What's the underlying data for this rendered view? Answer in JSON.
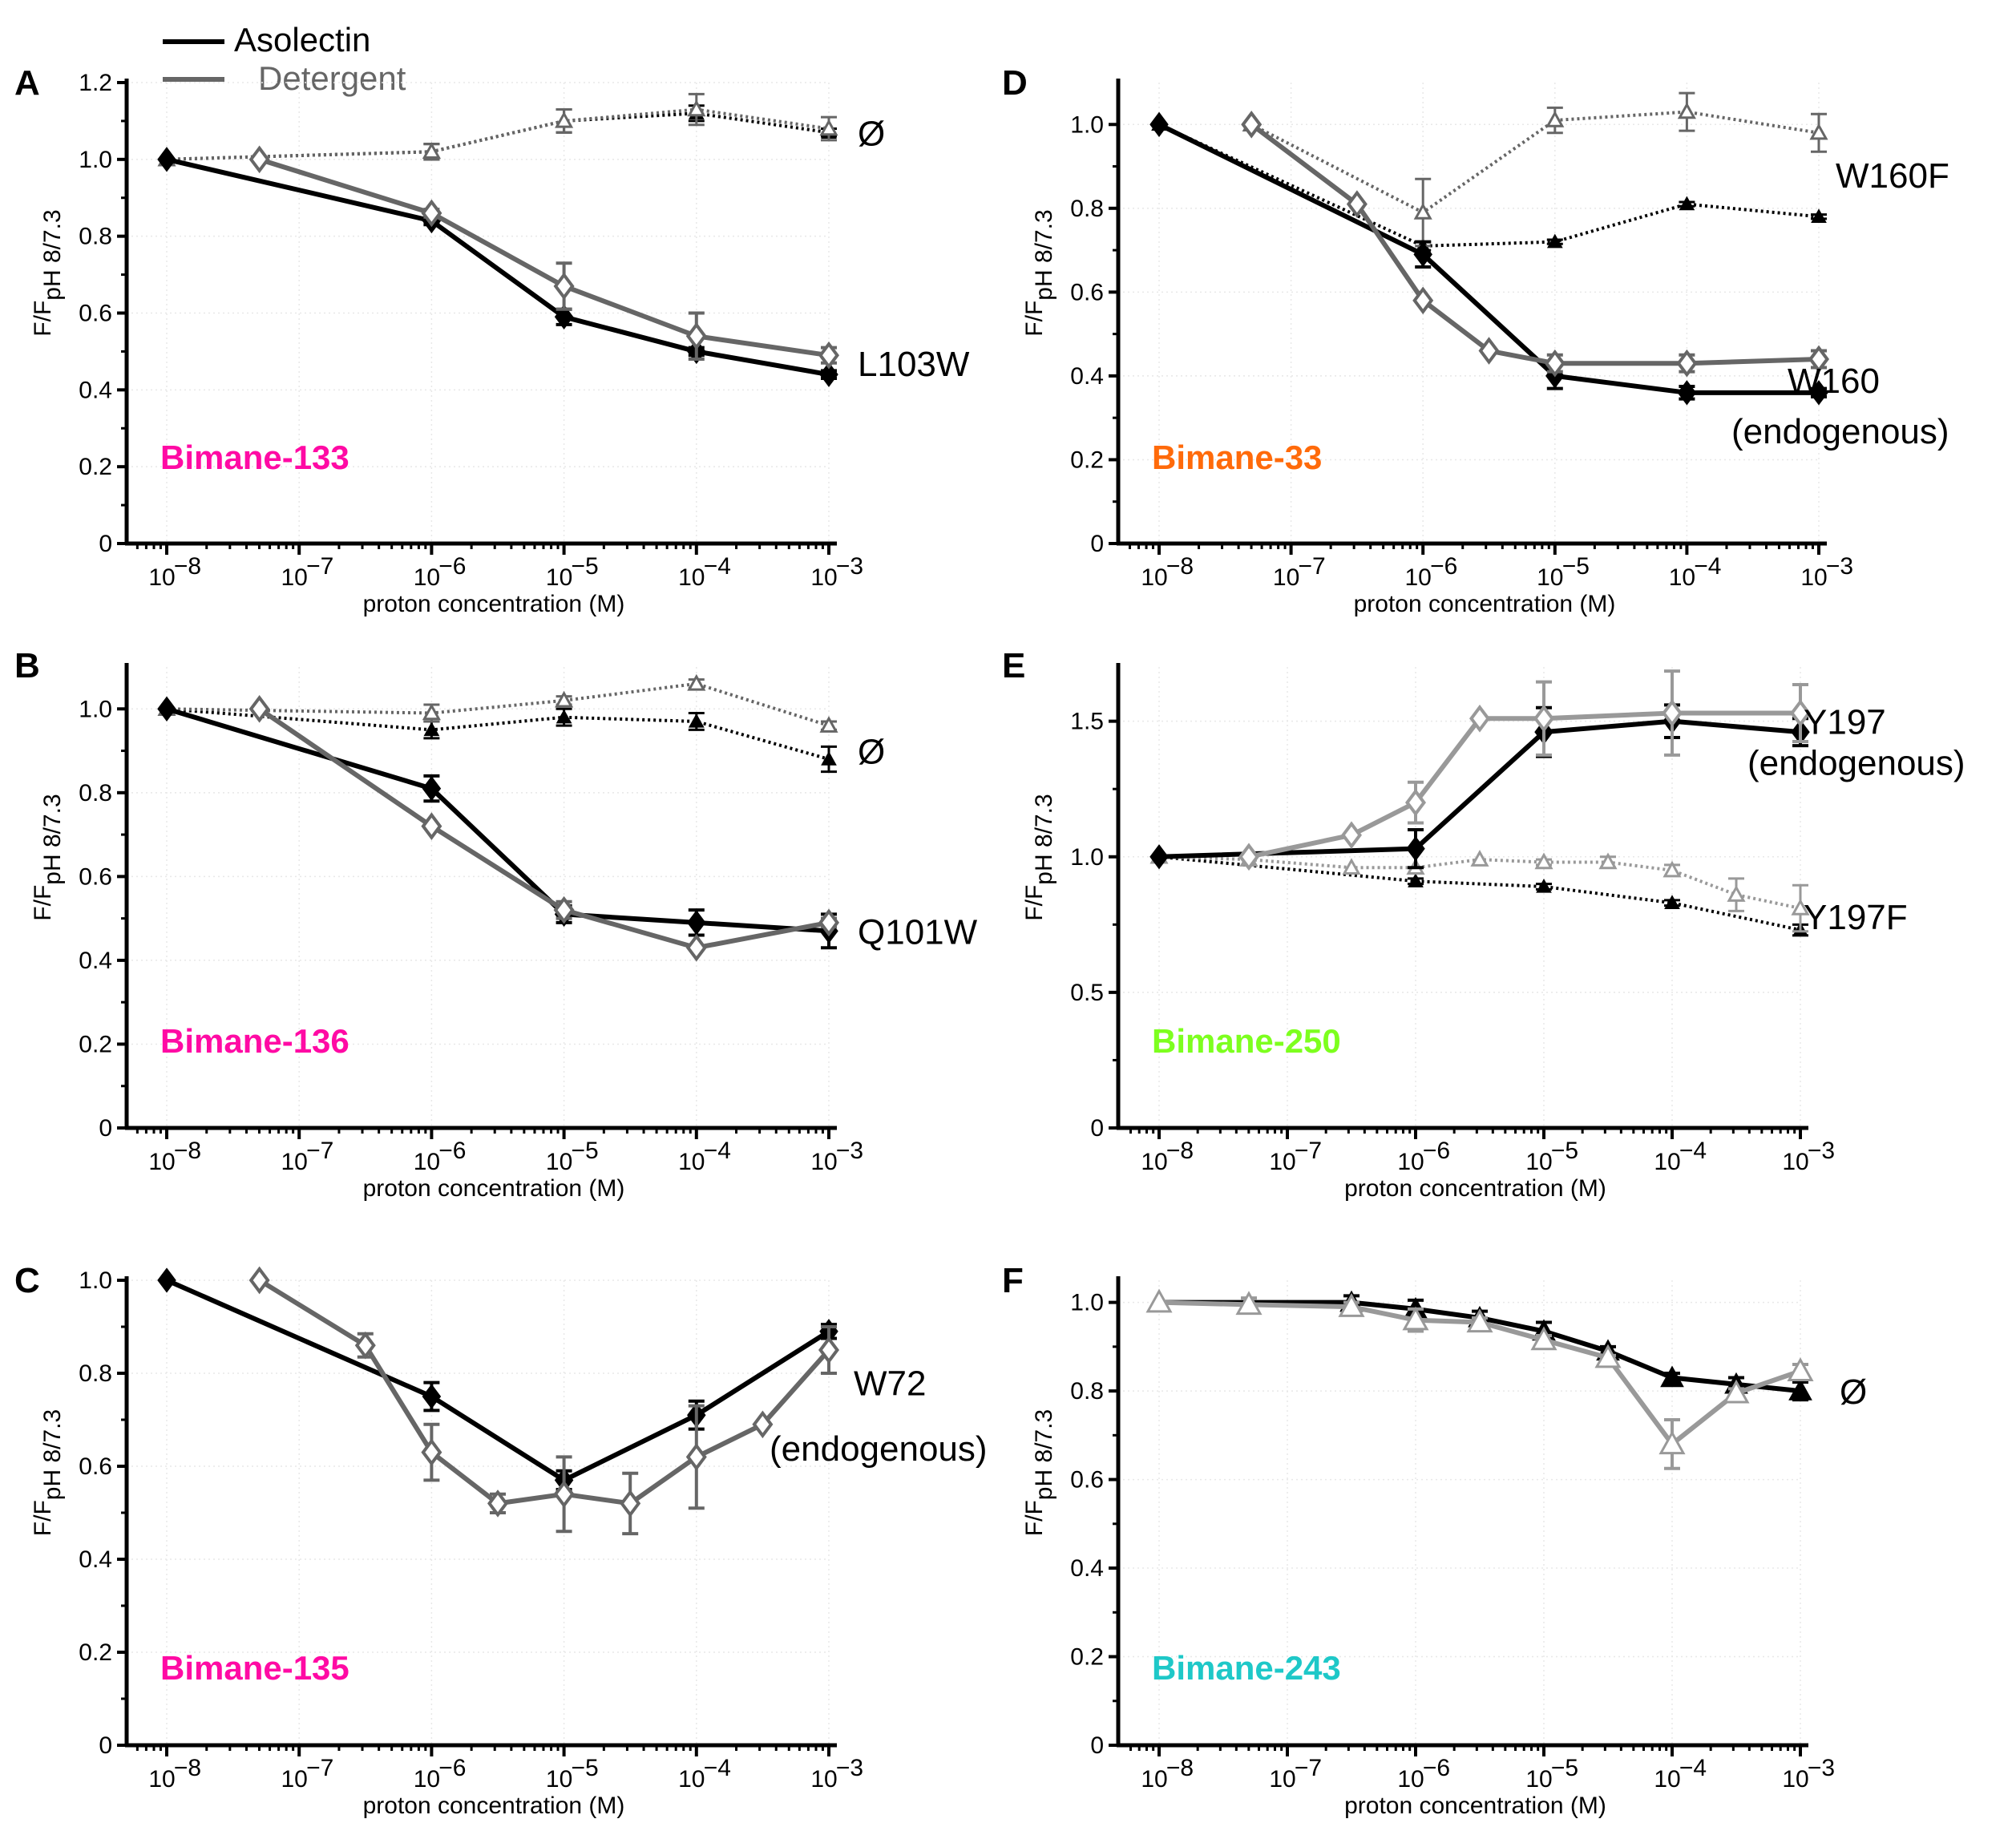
{
  "legend": [
    {
      "label": "Asolectin",
      "color": "#000000"
    },
    {
      "label": "Detergent",
      "color": "#666666"
    }
  ],
  "chart_data": [
    {
      "panel": "A",
      "type": "line",
      "probe_label": "Bimane-133",
      "probe_color": "#ff0aa4",
      "xlabel": "proton concentration (M)",
      "ylabel": "F/F pH 8/7.3",
      "xscale": "log",
      "xlim": [
        -8.3,
        -3
      ],
      "ylim": [
        0,
        1.2
      ],
      "yticks": [
        0,
        0.2,
        0.4,
        0.6,
        0.8,
        1.0,
        1.2
      ],
      "ytick_labels": [
        "0",
        "0.2",
        "0.4",
        "0.6",
        "0.8",
        "1.0",
        "1.2"
      ],
      "xticks": [
        -8,
        -7,
        -6,
        -5,
        -4,
        -3
      ],
      "annotations": [
        {
          "text": "Ø",
          "y": 1.07
        },
        {
          "text": "L103W",
          "y": 0.47
        }
      ],
      "series": [
        {
          "name": "L103W Asolectin",
          "style": "solid",
          "marker": "diamond-filled",
          "color": "#000000",
          "x": [
            -8,
            -6,
            -5,
            -4,
            -3
          ],
          "y": [
            1.0,
            0.84,
            0.59,
            0.5,
            0.44
          ],
          "err": [
            0,
            0.01,
            0.02,
            0.01,
            0.01
          ]
        },
        {
          "name": "L103W Detergent",
          "style": "solid",
          "marker": "diamond-open",
          "color": "#666666",
          "x": [
            -7.3,
            -6,
            -5,
            -4,
            -3
          ],
          "y": [
            1.0,
            0.86,
            0.67,
            0.54,
            0.49
          ],
          "err": [
            0,
            0.01,
            0.06,
            0.06,
            0.02
          ]
        },
        {
          "name": "Ø Asolectin",
          "style": "dotted",
          "marker": "triangle-filled",
          "color": "#000000",
          "x": [
            -8,
            -6,
            -5,
            -4,
            -3
          ],
          "y": [
            1.0,
            1.02,
            1.1,
            1.12,
            1.07
          ],
          "err": [
            0,
            0.02,
            0.03,
            0.02,
            0.01
          ]
        },
        {
          "name": "Ø Detergent",
          "style": "dotted",
          "marker": "triangle-open",
          "color": "#666666",
          "x": [
            -8,
            -6,
            -5,
            -4,
            -3
          ],
          "y": [
            1.0,
            1.02,
            1.1,
            1.13,
            1.08
          ],
          "err": [
            0,
            0.02,
            0.03,
            0.04,
            0.03
          ]
        }
      ]
    },
    {
      "panel": "B",
      "type": "line",
      "probe_label": "Bimane-136",
      "probe_color": "#ff0aa4",
      "xlabel": "proton concentration (M)",
      "ylabel": "F/F pH 8/7.3",
      "xscale": "log",
      "xlim": [
        -8.3,
        -3
      ],
      "ylim": [
        0,
        1.1
      ],
      "yticks": [
        0,
        0.2,
        0.4,
        0.6,
        0.8,
        1.0
      ],
      "ytick_labels": [
        "0",
        "0.2",
        "0.4",
        "0.6",
        "0.8",
        "1.0"
      ],
      "xticks": [
        -8,
        -7,
        -6,
        -5,
        -4,
        -3
      ],
      "annotations": [
        {
          "text": "Ø",
          "y": 0.9
        },
        {
          "text": "Q101W",
          "y": 0.47
        }
      ],
      "series": [
        {
          "name": "Q101W Asolectin",
          "style": "solid",
          "marker": "diamond-filled",
          "color": "#000000",
          "x": [
            -8,
            -6,
            -5,
            -4,
            -3
          ],
          "y": [
            1.0,
            0.81,
            0.51,
            0.49,
            0.47
          ],
          "err": [
            0,
            0.03,
            0.02,
            0.03,
            0.04
          ]
        },
        {
          "name": "Q101W Detergent",
          "style": "solid",
          "marker": "diamond-open",
          "color": "#666666",
          "x": [
            -7.3,
            -6,
            -5,
            -4,
            -3
          ],
          "y": [
            1.0,
            0.72,
            0.52,
            0.43,
            0.49
          ],
          "err": [
            0,
            0,
            0.02,
            0,
            0.01
          ]
        },
        {
          "name": "Ø Asolectin",
          "style": "dotted",
          "marker": "triangle-filled",
          "color": "#000000",
          "x": [
            -8,
            -6,
            -5,
            -4,
            -3
          ],
          "y": [
            1.0,
            0.95,
            0.98,
            0.97,
            0.88
          ],
          "err": [
            0,
            0.02,
            0.02,
            0.02,
            0.03
          ]
        },
        {
          "name": "Ø Detergent",
          "style": "dotted",
          "marker": "triangle-open",
          "color": "#666666",
          "x": [
            -8,
            -6,
            -5,
            -4,
            -3
          ],
          "y": [
            1.0,
            0.99,
            1.02,
            1.06,
            0.96
          ],
          "err": [
            0,
            0.02,
            0.01,
            0.01,
            0.01
          ]
        }
      ]
    },
    {
      "panel": "C",
      "type": "line",
      "probe_label": "Bimane-135",
      "probe_color": "#ff0aa4",
      "xlabel": "proton concentration (M)",
      "ylabel": "F/F pH 8/7.3",
      "xscale": "log",
      "xlim": [
        -8.3,
        -3
      ],
      "ylim": [
        0,
        1.0
      ],
      "yticks": [
        0,
        0.2,
        0.4,
        0.6,
        0.8,
        1.0
      ],
      "ytick_labels": [
        "0",
        "0.2",
        "0.4",
        "0.6",
        "0.8",
        "1.0"
      ],
      "xticks": [
        -8,
        -7,
        -6,
        -5,
        -4,
        -3
      ],
      "annotations": [
        {
          "text": "W72",
          "y": 0.78
        },
        {
          "text": "(endogenous)",
          "y": 0.64
        }
      ],
      "series": [
        {
          "name": "W72 Asolectin",
          "style": "solid",
          "marker": "diamond-filled",
          "color": "#000000",
          "x": [
            -8,
            -6,
            -5,
            -4,
            -3
          ],
          "y": [
            1.0,
            0.75,
            0.57,
            0.71,
            0.89
          ],
          "err": [
            0,
            0.03,
            0.02,
            0.03,
            0.015
          ]
        },
        {
          "name": "W72 Detergent",
          "style": "solid",
          "marker": "diamond-open",
          "color": "#666666",
          "x": [
            -7.3,
            -6.5,
            -6,
            -5.5,
            -5,
            -4.5,
            -4,
            -3.5,
            -3
          ],
          "y": [
            1.0,
            0.86,
            0.63,
            0.52,
            0.54,
            0.52,
            0.62,
            0.69,
            0.85
          ],
          "err": [
            0,
            0.025,
            0.06,
            0.02,
            0.08,
            0.065,
            0.11,
            0,
            0.05
          ]
        }
      ]
    },
    {
      "panel": "D",
      "type": "line",
      "probe_label": "Bimane-33",
      "probe_color": "#ff6a0a",
      "xlabel": "proton concentration (M)",
      "ylabel": "F/F pH 8/7.3",
      "xscale": "log",
      "xlim": [
        -8.3,
        -3
      ],
      "ylim": [
        0,
        1.1
      ],
      "yticks": [
        0,
        0.2,
        0.4,
        0.6,
        0.8,
        1.0
      ],
      "ytick_labels": [
        "0",
        "0.2",
        "0.4",
        "0.6",
        "0.8",
        "1.0"
      ],
      "xticks": [
        -8,
        -7,
        -6,
        -5,
        -4,
        -3
      ],
      "annotations": [
        {
          "text": "W160F",
          "y": 0.88
        },
        {
          "text": "W160",
          "y": 0.39
        },
        {
          "text": "(endogenous)",
          "y": 0.27
        }
      ],
      "series": [
        {
          "name": "W160 Asolectin",
          "style": "solid",
          "marker": "diamond-filled",
          "color": "#000000",
          "x": [
            -8,
            -6,
            -5,
            -4,
            -3
          ],
          "y": [
            1.0,
            0.69,
            0.4,
            0.36,
            0.36
          ],
          "err": [
            0,
            0.03,
            0.03,
            0.015,
            0.01
          ]
        },
        {
          "name": "W160 Detergent",
          "style": "solid",
          "marker": "diamond-open",
          "color": "#666666",
          "x": [
            -7.3,
            -6.5,
            -6,
            -5.5,
            -5,
            -4,
            -3
          ],
          "y": [
            1.0,
            0.81,
            0.58,
            0.46,
            0.43,
            0.43,
            0.44
          ],
          "err": [
            0,
            0,
            0,
            0,
            0.02,
            0.02,
            0.02
          ]
        },
        {
          "name": "W160F Asolectin",
          "style": "dotted",
          "marker": "triangle-filled",
          "color": "#000000",
          "x": [
            -8,
            -6,
            -5,
            -4,
            -3
          ],
          "y": [
            1.0,
            0.71,
            0.72,
            0.81,
            0.78
          ],
          "err": [
            0,
            0.01,
            0.005,
            0.005,
            0.005
          ]
        },
        {
          "name": "W160F Detergent",
          "style": "dotted",
          "marker": "triangle-open",
          "color": "#666666",
          "x": [
            -7.3,
            -6,
            -5,
            -4,
            -3
          ],
          "y": [
            1.0,
            0.79,
            1.01,
            1.03,
            0.98
          ],
          "err": [
            0,
            0.08,
            0.03,
            0.045,
            0.045
          ]
        }
      ]
    },
    {
      "panel": "E",
      "type": "line",
      "probe_label": "Bimane-250",
      "probe_color": "#7dff1e",
      "xlabel": "proton concentration (M)",
      "ylabel": "F/F pH 8/7.3",
      "xscale": "log",
      "xlim": [
        -8.3,
        -3
      ],
      "ylim": [
        0,
        1.7
      ],
      "yticks": [
        0,
        0.5,
        1.0,
        1.5
      ],
      "ytick_labels": [
        "0",
        "0.5",
        "1.0",
        "1.5"
      ],
      "xticks": [
        -8,
        -7,
        -6,
        -5,
        -4,
        -3
      ],
      "annotations": [
        {
          "text": "Y197",
          "y": 1.5
        },
        {
          "text": "(endogenous)",
          "y": 1.35
        },
        {
          "text": "Y197F",
          "y": 0.78
        }
      ],
      "series": [
        {
          "name": "Y197 Asolectin",
          "style": "solid",
          "marker": "diamond-filled",
          "color": "#000000",
          "x": [
            -8,
            -6,
            -5,
            -4,
            -3
          ],
          "y": [
            1.0,
            1.03,
            1.46,
            1.5,
            1.46
          ],
          "err": [
            0,
            0.07,
            0.09,
            0.06,
            0.05
          ]
        },
        {
          "name": "Y197 Detergent",
          "style": "solid",
          "marker": "diamond-open",
          "color": "#999999",
          "x": [
            -7.3,
            -6.5,
            -6,
            -5.5,
            -5,
            -4,
            -3
          ],
          "y": [
            1.0,
            1.08,
            1.2,
            1.51,
            1.51,
            1.53,
            1.53
          ],
          "err": [
            0,
            0,
            0.075,
            0,
            0.135,
            0.155,
            0.105
          ]
        },
        {
          "name": "Y197F Asolectin",
          "style": "dotted",
          "marker": "triangle-filled",
          "color": "#000000",
          "x": [
            -8,
            -6,
            -5,
            -4,
            -3
          ],
          "y": [
            1.0,
            0.91,
            0.89,
            0.83,
            0.73
          ],
          "err": [
            0,
            0.01,
            0.01,
            0.01,
            0.02
          ]
        },
        {
          "name": "Y197F Detergent",
          "style": "dotted",
          "marker": "triangle-open",
          "color": "#999999",
          "x": [
            -8,
            -7.3,
            -6.5,
            -6,
            -5.5,
            -5,
            -4.5,
            -4,
            -3.5,
            -3
          ],
          "y": [
            1.0,
            0.99,
            0.96,
            0.96,
            0.99,
            0.98,
            0.98,
            0.95,
            0.86,
            0.81
          ],
          "err": [
            0,
            0,
            0,
            0,
            0,
            0.01,
            0.02,
            0.02,
            0.06,
            0.085
          ]
        }
      ]
    },
    {
      "panel": "F",
      "type": "line",
      "probe_label": "Bimane-243",
      "probe_color": "#1ec8c8",
      "xlabel": "proton concentration (M)",
      "ylabel": "F/F pH 8/7.3",
      "xscale": "log",
      "xlim": [
        -8.3,
        -3
      ],
      "ylim": [
        0,
        1.05
      ],
      "yticks": [
        0,
        0.2,
        0.4,
        0.6,
        0.8,
        1.0
      ],
      "ytick_labels": [
        "0",
        "0.2",
        "0.4",
        "0.6",
        "0.8",
        "1.0"
      ],
      "xticks": [
        -8,
        -7,
        -6,
        -5,
        -4,
        -3
      ],
      "annotations": [
        {
          "text": "Ø",
          "y": 0.8
        }
      ],
      "series": [
        {
          "name": "Ø Asolectin",
          "style": "solid",
          "marker": "triangle-filled",
          "color": "#000000",
          "x": [
            -8,
            -6.5,
            -6,
            -5.5,
            -5,
            -4.5,
            -4,
            -3.5,
            -3
          ],
          "y": [
            1.0,
            1.0,
            0.985,
            0.965,
            0.935,
            0.89,
            0.83,
            0.815,
            0.8
          ],
          "err": [
            0,
            0.015,
            0.02,
            0.015,
            0.02,
            0.01,
            0.01,
            0.015,
            0.02
          ]
        },
        {
          "name": "Ø Detergent",
          "style": "solid",
          "marker": "triangle-open",
          "color": "#999999",
          "x": [
            -8,
            -7.3,
            -6.5,
            -6,
            -5.5,
            -5,
            -4.5,
            -4,
            -3.5,
            -3
          ],
          "y": [
            1.0,
            0.995,
            0.99,
            0.96,
            0.955,
            0.915,
            0.875,
            0.68,
            0.795,
            0.845
          ],
          "err": [
            0,
            0.015,
            0.01,
            0.025,
            0.01,
            0.01,
            0.005,
            0.055,
            0.01,
            0.015
          ]
        }
      ]
    }
  ]
}
